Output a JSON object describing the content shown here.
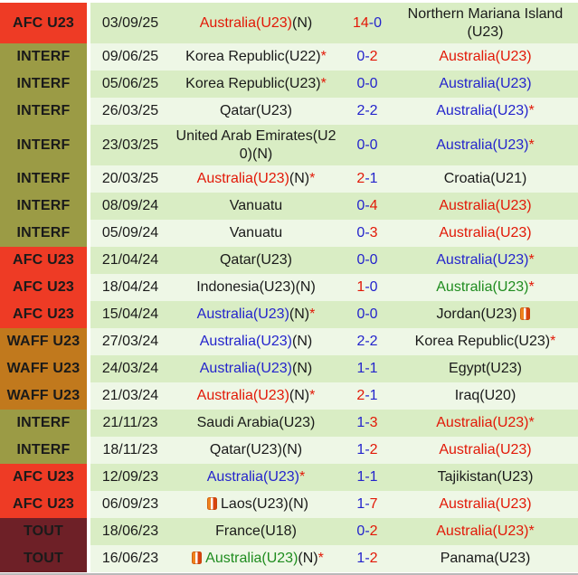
{
  "table": {
    "description_columns": [
      "competition",
      "date",
      "home_team",
      "score",
      "away_team"
    ],
    "colors": {
      "comp": {
        "afc": "#ee3b25",
        "interf": "#9b9b45",
        "waff": "#c1791d",
        "tout": "#6e2027"
      },
      "text": {
        "red": "#e21807",
        "blue": "#2424cc",
        "green": "#1f8c1f",
        "black": "#1a1a1a"
      },
      "row_odd": "#d9edc4",
      "row_even": "#eef7e6"
    },
    "icon_name": "orange-card-icon",
    "rows": [
      {
        "comp": "AFC U23",
        "comp_color": "afc",
        "date": "03/09/25",
        "tall": true,
        "home": {
          "segments": [
            {
              "t": "Australia(U23)",
              "c": "red"
            },
            {
              "t": "(N)",
              "c": "black"
            }
          ]
        },
        "score": [
          {
            "t": "14",
            "c": "red"
          },
          {
            "t": "-0",
            "c": "blue"
          }
        ],
        "away": {
          "segments": [
            {
              "t": "Northern Mariana Island (U23)",
              "c": "black"
            }
          ]
        }
      },
      {
        "comp": "INTERF",
        "comp_color": "interf",
        "date": "09/06/25",
        "tall": false,
        "home": {
          "segments": [
            {
              "t": "Korea Republic(U22)",
              "c": "black"
            },
            {
              "t": "*",
              "c": "red"
            }
          ]
        },
        "score": [
          {
            "t": "0-",
            "c": "blue"
          },
          {
            "t": "2",
            "c": "red"
          }
        ],
        "away": {
          "segments": [
            {
              "t": "Australia(U23)",
              "c": "red"
            }
          ]
        }
      },
      {
        "comp": "INTERF",
        "comp_color": "interf",
        "date": "05/06/25",
        "tall": false,
        "home": {
          "segments": [
            {
              "t": "Korea Republic(U23)",
              "c": "black"
            },
            {
              "t": "*",
              "c": "red"
            }
          ]
        },
        "score": [
          {
            "t": "0-0",
            "c": "blue"
          }
        ],
        "away": {
          "segments": [
            {
              "t": "Australia(U23)",
              "c": "blue"
            }
          ]
        }
      },
      {
        "comp": "INTERF",
        "comp_color": "interf",
        "date": "26/03/25",
        "tall": false,
        "home": {
          "segments": [
            {
              "t": "Qatar(U23)",
              "c": "black"
            }
          ]
        },
        "score": [
          {
            "t": "2-2",
            "c": "blue"
          }
        ],
        "away": {
          "segments": [
            {
              "t": "Australia(U23)",
              "c": "blue"
            },
            {
              "t": "*",
              "c": "red"
            }
          ]
        }
      },
      {
        "comp": "INTERF",
        "comp_color": "interf",
        "date": "23/03/25",
        "tall": true,
        "home": {
          "segments": [
            {
              "t": "United Arab Emirates(U20)(N)",
              "c": "black"
            }
          ]
        },
        "score": [
          {
            "t": "0-0",
            "c": "blue"
          }
        ],
        "away": {
          "segments": [
            {
              "t": "Australia(U23)",
              "c": "blue"
            },
            {
              "t": "*",
              "c": "red"
            }
          ]
        }
      },
      {
        "comp": "INTERF",
        "comp_color": "interf",
        "date": "20/03/25",
        "tall": false,
        "home": {
          "segments": [
            {
              "t": "Australia(U23)",
              "c": "red"
            },
            {
              "t": "(N)",
              "c": "black"
            },
            {
              "t": "*",
              "c": "red"
            }
          ]
        },
        "score": [
          {
            "t": "2",
            "c": "red"
          },
          {
            "t": "-1",
            "c": "blue"
          }
        ],
        "away": {
          "segments": [
            {
              "t": "Croatia(U21)",
              "c": "black"
            }
          ]
        }
      },
      {
        "comp": "INTERF",
        "comp_color": "interf",
        "date": "08/09/24",
        "tall": false,
        "home": {
          "segments": [
            {
              "t": "Vanuatu",
              "c": "black"
            }
          ]
        },
        "score": [
          {
            "t": "0-",
            "c": "blue"
          },
          {
            "t": "4",
            "c": "red"
          }
        ],
        "away": {
          "segments": [
            {
              "t": "Australia(U23)",
              "c": "red"
            }
          ]
        }
      },
      {
        "comp": "INTERF",
        "comp_color": "interf",
        "date": "05/09/24",
        "tall": false,
        "home": {
          "segments": [
            {
              "t": "Vanuatu",
              "c": "black"
            }
          ]
        },
        "score": [
          {
            "t": "0-",
            "c": "blue"
          },
          {
            "t": "3",
            "c": "red"
          }
        ],
        "away": {
          "segments": [
            {
              "t": "Australia(U23)",
              "c": "red"
            }
          ]
        }
      },
      {
        "comp": "AFC U23",
        "comp_color": "afc",
        "date": "21/04/24",
        "tall": false,
        "home": {
          "segments": [
            {
              "t": "Qatar(U23)",
              "c": "black"
            }
          ]
        },
        "score": [
          {
            "t": "0-0",
            "c": "blue"
          }
        ],
        "away": {
          "segments": [
            {
              "t": "Australia(U23)",
              "c": "blue"
            },
            {
              "t": "*",
              "c": "red"
            }
          ]
        }
      },
      {
        "comp": "AFC U23",
        "comp_color": "afc",
        "date": "18/04/24",
        "tall": false,
        "home": {
          "segments": [
            {
              "t": "Indonesia(U23)(N)",
              "c": "black"
            }
          ]
        },
        "score": [
          {
            "t": "1",
            "c": "red"
          },
          {
            "t": "-0",
            "c": "blue"
          }
        ],
        "away": {
          "segments": [
            {
              "t": "Australia(U23)",
              "c": "green"
            },
            {
              "t": "*",
              "c": "red"
            }
          ]
        }
      },
      {
        "comp": "AFC U23",
        "comp_color": "afc",
        "date": "15/04/24",
        "tall": false,
        "home": {
          "segments": [
            {
              "t": "Australia(U23)",
              "c": "blue"
            },
            {
              "t": "(N)",
              "c": "black"
            },
            {
              "t": "*",
              "c": "red"
            }
          ]
        },
        "score": [
          {
            "t": "0-0",
            "c": "blue"
          }
        ],
        "away": {
          "segments": [
            {
              "t": "Jordan(U23)",
              "c": "black"
            }
          ],
          "icon": "after"
        }
      },
      {
        "comp": "WAFF U23",
        "comp_color": "waff",
        "date": "27/03/24",
        "tall": false,
        "home": {
          "segments": [
            {
              "t": "Australia(U23)",
              "c": "blue"
            },
            {
              "t": "(N)",
              "c": "black"
            }
          ]
        },
        "score": [
          {
            "t": "2-2",
            "c": "blue"
          }
        ],
        "away": {
          "segments": [
            {
              "t": "Korea Republic(U23)",
              "c": "black"
            },
            {
              "t": "*",
              "c": "red"
            }
          ]
        }
      },
      {
        "comp": "WAFF U23",
        "comp_color": "waff",
        "date": "24/03/24",
        "tall": false,
        "home": {
          "segments": [
            {
              "t": "Australia(U23)",
              "c": "blue"
            },
            {
              "t": "(N)",
              "c": "black"
            }
          ]
        },
        "score": [
          {
            "t": "1-1",
            "c": "blue"
          }
        ],
        "away": {
          "segments": [
            {
              "t": "Egypt(U23)",
              "c": "black"
            }
          ]
        }
      },
      {
        "comp": "WAFF U23",
        "comp_color": "waff",
        "date": "21/03/24",
        "tall": false,
        "home": {
          "segments": [
            {
              "t": "Australia(U23)",
              "c": "red"
            },
            {
              "t": "(N)",
              "c": "black"
            },
            {
              "t": "*",
              "c": "red"
            }
          ]
        },
        "score": [
          {
            "t": "2",
            "c": "red"
          },
          {
            "t": "-1",
            "c": "blue"
          }
        ],
        "away": {
          "segments": [
            {
              "t": "Iraq(U20)",
              "c": "black"
            }
          ]
        }
      },
      {
        "comp": "INTERF",
        "comp_color": "interf",
        "date": "21/11/23",
        "tall": false,
        "home": {
          "segments": [
            {
              "t": "Saudi Arabia(U23)",
              "c": "black"
            }
          ]
        },
        "score": [
          {
            "t": "1-",
            "c": "blue"
          },
          {
            "t": "3",
            "c": "red"
          }
        ],
        "away": {
          "segments": [
            {
              "t": "Australia(U23)",
              "c": "red"
            },
            {
              "t": "*",
              "c": "red"
            }
          ]
        }
      },
      {
        "comp": "INTERF",
        "comp_color": "interf",
        "date": "18/11/23",
        "tall": false,
        "home": {
          "segments": [
            {
              "t": "Qatar(U23)(N)",
              "c": "black"
            }
          ]
        },
        "score": [
          {
            "t": "1-",
            "c": "blue"
          },
          {
            "t": "2",
            "c": "red"
          }
        ],
        "away": {
          "segments": [
            {
              "t": "Australia(U23)",
              "c": "red"
            }
          ]
        }
      },
      {
        "comp": "AFC U23",
        "comp_color": "afc",
        "date": "12/09/23",
        "tall": false,
        "home": {
          "segments": [
            {
              "t": "Australia(U23)",
              "c": "blue"
            },
            {
              "t": "*",
              "c": "red"
            }
          ]
        },
        "score": [
          {
            "t": "1-1",
            "c": "blue"
          }
        ],
        "away": {
          "segments": [
            {
              "t": "Tajikistan(U23)",
              "c": "black"
            }
          ]
        }
      },
      {
        "comp": "AFC U23",
        "comp_color": "afc",
        "date": "06/09/23",
        "tall": false,
        "home": {
          "segments": [
            {
              "t": "Laos(U23)(N)",
              "c": "black"
            }
          ],
          "icon": "before"
        },
        "score": [
          {
            "t": "1-",
            "c": "blue"
          },
          {
            "t": "7",
            "c": "red"
          }
        ],
        "away": {
          "segments": [
            {
              "t": "Australia(U23)",
              "c": "red"
            }
          ]
        }
      },
      {
        "comp": "TOUT",
        "comp_color": "tout",
        "date": "18/06/23",
        "tall": false,
        "home": {
          "segments": [
            {
              "t": "France(U18)",
              "c": "black"
            }
          ]
        },
        "score": [
          {
            "t": "0-",
            "c": "blue"
          },
          {
            "t": "2",
            "c": "red"
          }
        ],
        "away": {
          "segments": [
            {
              "t": "Australia(U23)",
              "c": "red"
            },
            {
              "t": "*",
              "c": "red"
            }
          ]
        }
      },
      {
        "comp": "TOUT",
        "comp_color": "tout",
        "date": "16/06/23",
        "tall": false,
        "home": {
          "segments": [
            {
              "t": "Australia(U23)",
              "c": "green"
            },
            {
              "t": "(N)",
              "c": "black"
            },
            {
              "t": "*",
              "c": "red"
            }
          ],
          "icon": "before"
        },
        "score": [
          {
            "t": "1-",
            "c": "blue"
          },
          {
            "t": "2",
            "c": "red"
          }
        ],
        "away": {
          "segments": [
            {
              "t": "Panama(U23)",
              "c": "black"
            }
          ]
        }
      }
    ]
  }
}
